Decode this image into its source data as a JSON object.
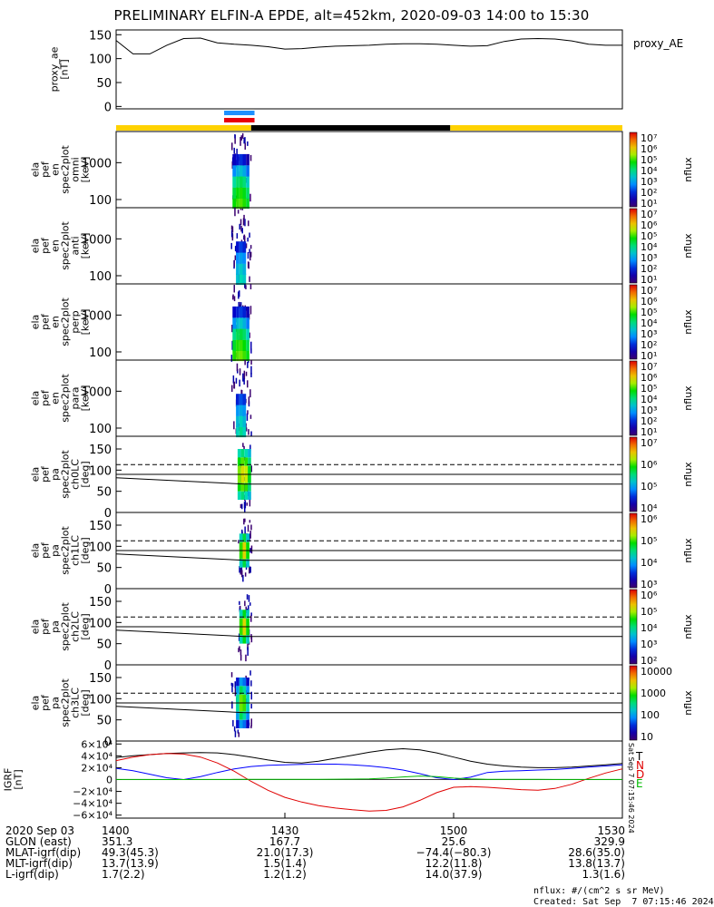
{
  "title": "PRELIMINARY ELFIN-A EPDE, alt=452km, 2020-09-03 14:00 to 15:30",
  "colors": {
    "spin_bar_top": "#1e90ff",
    "spin_bar_bottom": "#e8000b",
    "science_zone_day": "#ffd200",
    "science_zone_night": "#000000",
    "series_black": "#000000",
    "series_blue": "#0000ff",
    "series_red": "#e00000",
    "series_green": "#00bb00"
  },
  "panels": {
    "ae": {
      "ylabel": "proxy_ae [nT]",
      "legend": "proxy_AE",
      "ticks": [
        "150",
        "100",
        "50",
        "0"
      ]
    },
    "energy": [
      {
        "ylabel": "ela pef en spec2plot omni [keV]",
        "ticks": [
          "1000",
          "100"
        ]
      },
      {
        "ylabel": "ela pef en spec2plot anti [keV]",
        "ticks": [
          "1000",
          "100"
        ]
      },
      {
        "ylabel": "ela pef en spec2plot perp [keV]",
        "ticks": [
          "1000",
          "100"
        ]
      },
      {
        "ylabel": "ela pef en spec2plot para [keV]",
        "ticks": [
          "1000",
          "100"
        ]
      }
    ],
    "pitch": [
      {
        "ylabel": "ela pef pa spec2plot ch0LC [deg]",
        "ticks": [
          "150",
          "100",
          "50",
          "0"
        ]
      },
      {
        "ylabel": "ela pef pa spec2plot ch1LC [deg]",
        "ticks": [
          "150",
          "100",
          "50",
          "0"
        ]
      },
      {
        "ylabel": "ela pef pa spec2plot ch2LC [deg]",
        "ticks": [
          "150",
          "100",
          "50",
          "0"
        ]
      },
      {
        "ylabel": "ela pef pa spec2plot ch3LC [deg]",
        "ticks": [
          "150",
          "100",
          "50",
          "0"
        ]
      }
    ],
    "igrf": {
      "ylabel": "IGRF [nT]",
      "ticks": [
        "6×10⁴",
        "4×10⁴",
        "2×10⁴",
        "0",
        "−2×10⁴",
        "−4×10⁴",
        "−6×10⁴"
      ],
      "legend": [
        "T",
        "N",
        "D",
        "E"
      ]
    }
  },
  "colorbars": [
    {
      "unit": "nflux",
      "labels": [
        "10⁷",
        "10⁶",
        "10⁵",
        "10⁴",
        "10³",
        "10²",
        "10¹"
      ]
    },
    {
      "unit": "nflux",
      "labels": [
        "10⁷",
        "10⁶",
        "10⁵",
        "10⁴",
        "10³",
        "10²",
        "10¹"
      ]
    },
    {
      "unit": "nflux",
      "labels": [
        "10⁷",
        "10⁶",
        "10⁵",
        "10⁴",
        "10³",
        "10²",
        "10¹"
      ]
    },
    {
      "unit": "nflux",
      "labels": [
        "10⁷",
        "10⁶",
        "10⁵",
        "10⁴",
        "10³",
        "10²",
        "10¹"
      ]
    },
    {
      "unit": "nflux",
      "labels": [
        "10⁷",
        "10⁶",
        "10⁵",
        "10⁴"
      ]
    },
    {
      "unit": "nflux",
      "labels": [
        "10⁶",
        "10⁵",
        "10⁴",
        "10³"
      ]
    },
    {
      "unit": "nflux",
      "labels": [
        "10⁶",
        "10⁵",
        "10⁴",
        "10³",
        "10²"
      ]
    },
    {
      "unit": "nflux",
      "labels": [
        "10000",
        "1000",
        "100",
        "10"
      ]
    }
  ],
  "footer": {
    "rows": [
      {
        "label": "2020 Sep 03",
        "values": [
          "1400",
          "1430",
          "1500",
          "1530"
        ]
      },
      {
        "label": "GLON (east)",
        "values": [
          "351.3",
          "167.7",
          "25.6",
          "329.9"
        ]
      },
      {
        "label": "MLAT-igrf(dip)",
        "values": [
          "49.3(45.3)",
          "21.0(17.3)",
          "−74.4(−80.3)",
          "28.6(35.0)"
        ]
      },
      {
        "label": "MLT-igrf(dip)",
        "values": [
          "13.7(13.9)",
          "1.5(1.4)",
          "12.2(11.8)",
          "13.8(13.7)"
        ]
      },
      {
        "label": "L-igrf(dip)",
        "values": [
          "1.7(2.2)",
          "1.2(1.2)",
          "14.0(37.9)",
          "1.3(1.6)"
        ]
      }
    ],
    "units_note": "nflux: #/(cm^2 s sr MeV)",
    "created": "Created: Sat Sep  7 07:15:46 2024",
    "side_stamp": "Sat Sep  7 07:15:46 2024"
  },
  "chart_data": [
    {
      "type": "line",
      "title": "proxy_AE",
      "ylabel": "proxy_ae [nT]",
      "x_unit": "UT hours",
      "xlim": [
        14.0,
        15.5
      ],
      "ylim": [
        -5,
        160
      ],
      "x": [
        14.0,
        14.05,
        14.1,
        14.15,
        14.2,
        14.25,
        14.3,
        14.35,
        14.4,
        14.45,
        14.5,
        14.55,
        14.6,
        14.65,
        14.7,
        14.75,
        14.8,
        14.85,
        14.9,
        14.95,
        15.0,
        15.05,
        15.1,
        15.15,
        15.2,
        15.25,
        15.3,
        15.35,
        15.4,
        15.45,
        15.5
      ],
      "values": [
        138,
        110,
        110,
        128,
        142,
        143,
        133,
        130,
        128,
        125,
        120,
        121,
        124,
        126,
        127,
        128,
        130,
        131,
        131,
        130,
        128,
        126,
        127,
        136,
        141,
        142,
        141,
        137,
        130,
        128,
        128
      ]
    },
    {
      "type": "heatmap",
      "title": "ela pef en spec2plot omni",
      "y_unit": "keV",
      "ylim": [
        60,
        7000
      ],
      "z_unit": "nflux",
      "zlim": [
        10,
        10000000
      ],
      "active_time": [
        14.34,
        14.4
      ],
      "times": [
        14.35,
        14.36,
        14.37,
        14.38,
        14.39
      ],
      "energies_keV": [
        80,
        150,
        300,
        600,
        1200
      ],
      "log_flux": [
        [
          4.6,
          4.8,
          4.9,
          4.7,
          4.4
        ],
        [
          4.3,
          4.6,
          4.7,
          4.5,
          4.1
        ],
        [
          3.8,
          4.1,
          4.2,
          4.0,
          3.5
        ],
        [
          2.8,
          3.2,
          3.4,
          3.1,
          2.6
        ],
        [
          1.8,
          2.0,
          2.2,
          2.0,
          1.6
        ]
      ]
    },
    {
      "type": "heatmap",
      "title": "ela pef en spec2plot anti",
      "y_unit": "keV",
      "ylim": [
        60,
        7000
      ],
      "z_unit": "nflux",
      "zlim": [
        10,
        10000000
      ],
      "active_time": [
        14.34,
        14.4
      ],
      "times": [
        14.36,
        14.37,
        14.38
      ],
      "energies_keV": [
        80,
        150,
        300,
        600
      ],
      "log_flux": [
        [
          3.4,
          3.7,
          3.5
        ],
        [
          3.2,
          3.5,
          3.2
        ],
        [
          2.8,
          3.0,
          2.8
        ],
        [
          2.0,
          2.3,
          2.1
        ]
      ]
    },
    {
      "type": "heatmap",
      "title": "ela pef en spec2plot perp",
      "y_unit": "keV",
      "ylim": [
        60,
        7000
      ],
      "z_unit": "nflux",
      "zlim": [
        10,
        10000000
      ],
      "active_time": [
        14.34,
        14.4
      ],
      "times": [
        14.35,
        14.36,
        14.37,
        14.38,
        14.39
      ],
      "energies_keV": [
        80,
        150,
        300,
        600,
        1200
      ],
      "log_flux": [
        [
          4.7,
          4.9,
          5.0,
          4.8,
          4.5
        ],
        [
          4.4,
          4.7,
          4.8,
          4.6,
          4.2
        ],
        [
          3.9,
          4.2,
          4.3,
          4.1,
          3.6
        ],
        [
          2.9,
          3.3,
          3.5,
          3.2,
          2.7
        ],
        [
          1.9,
          2.1,
          2.3,
          2.1,
          1.7
        ]
      ]
    },
    {
      "type": "heatmap",
      "title": "ela pef en spec2plot para",
      "y_unit": "keV",
      "ylim": [
        60,
        7000
      ],
      "z_unit": "nflux",
      "zlim": [
        10,
        10000000
      ],
      "active_time": [
        14.34,
        14.4
      ],
      "times": [
        14.36,
        14.37,
        14.38
      ],
      "energies_keV": [
        80,
        150,
        300,
        600
      ],
      "log_flux": [
        [
          3.6,
          3.9,
          3.6
        ],
        [
          3.3,
          3.6,
          3.3
        ],
        [
          2.9,
          3.1,
          2.9
        ],
        [
          2.1,
          2.4,
          2.2
        ]
      ]
    },
    {
      "type": "heatmap",
      "title": "ela pef pa spec2plot ch0LC",
      "y_unit": "deg",
      "ylim": [
        0,
        180
      ],
      "z_unit": "nflux",
      "zlim": [
        1000,
        10000000
      ],
      "loss_cone_deg": [
        113,
        67
      ],
      "trapped_deg": 90,
      "active_time": [
        14.36,
        14.4
      ],
      "times": [
        14.365,
        14.375,
        14.385,
        14.395
      ],
      "pitch_deg": [
        40,
        60,
        80,
        100,
        120,
        140
      ],
      "log_flux": [
        [
          4.8,
          5.0,
          4.8,
          4.5
        ],
        [
          5.4,
          5.6,
          5.5,
          5.0
        ],
        [
          5.7,
          6.0,
          5.9,
          5.3
        ],
        [
          5.7,
          6.0,
          5.9,
          5.3
        ],
        [
          5.4,
          5.6,
          5.5,
          5.0
        ],
        [
          4.8,
          5.0,
          4.8,
          4.5
        ]
      ]
    },
    {
      "type": "heatmap",
      "title": "ela pef pa spec2plot ch1LC",
      "y_unit": "deg",
      "ylim": [
        0,
        180
      ],
      "z_unit": "nflux",
      "zlim": [
        500,
        5000000
      ],
      "loss_cone_deg": [
        113,
        67
      ],
      "trapped_deg": 90,
      "active_time": [
        14.36,
        14.4
      ],
      "times": [
        14.37,
        14.38,
        14.39
      ],
      "pitch_deg": [
        60,
        80,
        100,
        120
      ],
      "log_flux": [
        [
          4.4,
          4.9,
          4.3
        ],
        [
          5.2,
          5.8,
          5.1
        ],
        [
          5.2,
          5.8,
          5.1
        ],
        [
          4.4,
          4.9,
          4.3
        ]
      ]
    },
    {
      "type": "heatmap",
      "title": "ela pef pa spec2plot ch2LC",
      "y_unit": "deg",
      "ylim": [
        0,
        180
      ],
      "z_unit": "nflux",
      "zlim": [
        50,
        1000000
      ],
      "loss_cone_deg": [
        113,
        67
      ],
      "trapped_deg": 90,
      "active_time": [
        14.36,
        14.4
      ],
      "times": [
        14.37,
        14.38,
        14.39
      ],
      "pitch_deg": [
        60,
        80,
        100,
        120
      ],
      "log_flux": [
        [
          3.6,
          4.2,
          3.5
        ],
        [
          4.4,
          5.0,
          4.3
        ],
        [
          4.4,
          5.0,
          4.3
        ],
        [
          3.6,
          4.2,
          3.5
        ]
      ]
    },
    {
      "type": "heatmap",
      "title": "ela pef pa spec2plot ch3LC",
      "y_unit": "deg",
      "ylim": [
        0,
        180
      ],
      "z_unit": "nflux",
      "zlim": [
        10,
        10000
      ],
      "loss_cone_deg": [
        113,
        67
      ],
      "trapped_deg": 90,
      "active_time": [
        14.34,
        14.4
      ],
      "times": [
        14.36,
        14.37,
        14.38,
        14.39
      ],
      "pitch_deg": [
        40,
        60,
        80,
        100,
        120,
        140
      ],
      "log_flux": [
        [
          1.5,
          2.0,
          1.8,
          1.4
        ],
        [
          2.0,
          2.6,
          2.4,
          1.9
        ],
        [
          2.4,
          3.0,
          2.9,
          2.3
        ],
        [
          2.4,
          3.0,
          2.9,
          2.3
        ],
        [
          2.0,
          2.6,
          2.4,
          1.9
        ],
        [
          1.5,
          2.0,
          1.8,
          1.4
        ]
      ]
    },
    {
      "type": "line",
      "title": "IGRF",
      "ylabel": "IGRF [nT]",
      "xlim": [
        14.0,
        15.5
      ],
      "ylim": [
        -65000,
        65000
      ],
      "x": [
        14.0,
        14.05,
        14.1,
        14.15,
        14.2,
        14.25,
        14.3,
        14.35,
        14.4,
        14.45,
        14.5,
        14.55,
        14.6,
        14.65,
        14.7,
        14.75,
        14.8,
        14.85,
        14.9,
        14.95,
        15.0,
        15.05,
        15.1,
        15.15,
        15.2,
        15.25,
        15.3,
        15.35,
        15.4,
        15.45,
        15.5
      ],
      "series": [
        {
          "name": "T",
          "color": "#000000",
          "values": [
            37000,
            40000,
            42000,
            44000,
            45000,
            45500,
            45000,
            42000,
            38000,
            33000,
            29000,
            28000,
            31000,
            36000,
            41000,
            46000,
            50000,
            52000,
            50000,
            45000,
            38000,
            31000,
            26000,
            23000,
            21000,
            20000,
            20000,
            21000,
            23000,
            25000,
            27000
          ]
        },
        {
          "name": "N",
          "color": "#0000ff",
          "values": [
            19000,
            15000,
            9000,
            3000,
            0,
            5000,
            12000,
            18000,
            22000,
            24000,
            25000,
            25500,
            26000,
            26000,
            25000,
            23000,
            20000,
            16000,
            10000,
            3000,
            0,
            4000,
            12000,
            14000,
            15000,
            16000,
            17000,
            19000,
            21000,
            23000,
            25000
          ]
        },
        {
          "name": "D",
          "color": "#e00000",
          "values": [
            32000,
            38000,
            42000,
            44000,
            43000,
            38000,
            28000,
            14000,
            -3000,
            -18000,
            -30000,
            -38000,
            -44000,
            -48000,
            -51000,
            -53000,
            -52000,
            -46000,
            -35000,
            -22000,
            -13000,
            -12000,
            -13000,
            -15000,
            -17000,
            -18000,
            -15000,
            -8000,
            2000,
            11000,
            18000
          ]
        },
        {
          "name": "E",
          "color": "#00bb00",
          "values": [
            200,
            200,
            100,
            0,
            0,
            100,
            200,
            300,
            400,
            500,
            500,
            500,
            500,
            600,
            800,
            1200,
            2500,
            4500,
            6000,
            5000,
            2500,
            1000,
            500,
            400,
            300,
            300,
            200,
            200,
            200,
            200,
            200
          ]
        }
      ]
    }
  ]
}
